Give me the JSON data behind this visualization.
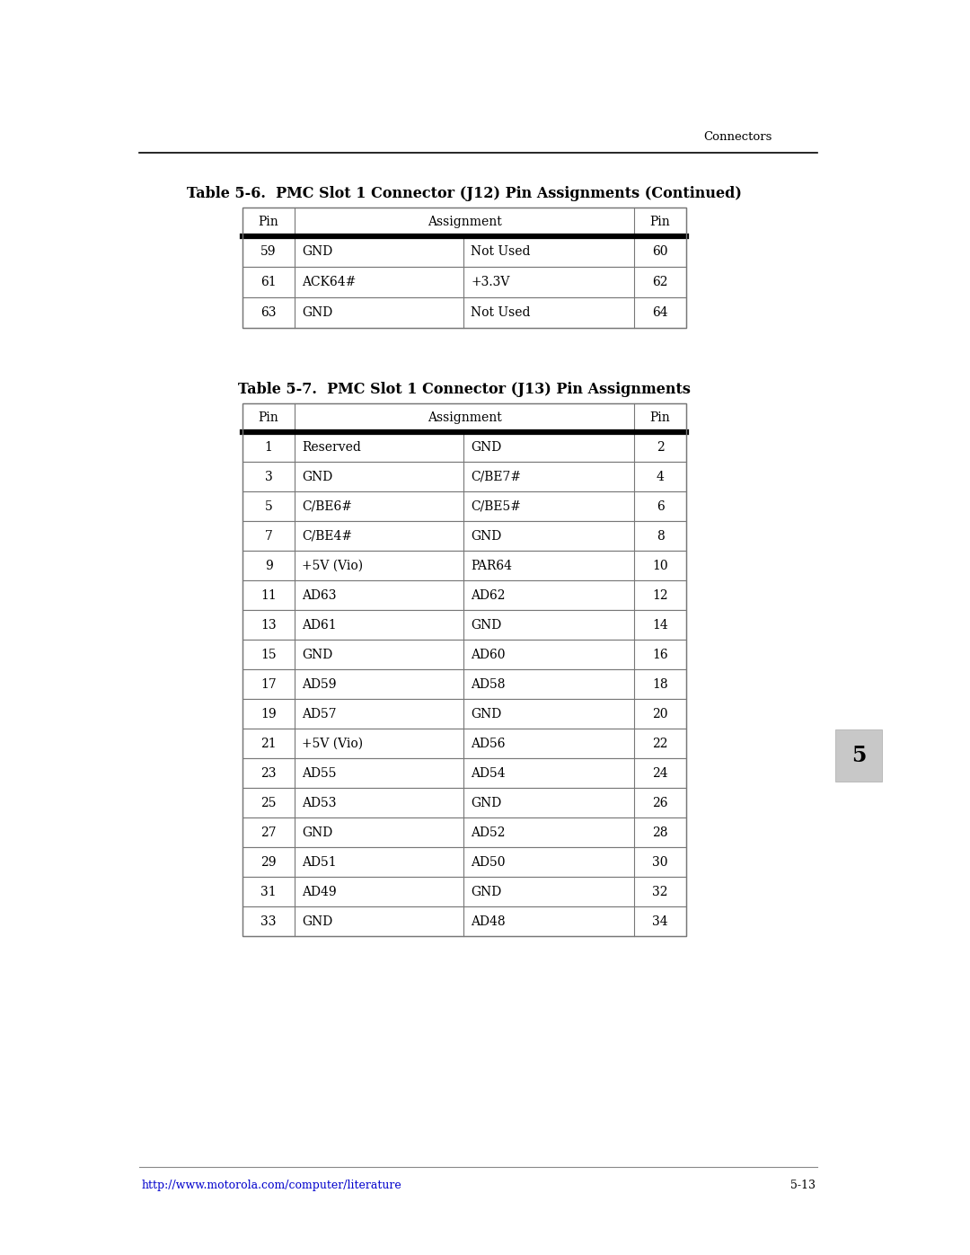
{
  "page_bg": "#ffffff",
  "header_text": "Connectors",
  "tab_number": "5",
  "table1_title": "Table 5-6.  PMC Slot 1 Connector (J12) Pin Assignments (Continued)",
  "table1_col_headers": [
    "Pin",
    "Assignment",
    "Pin"
  ],
  "table1_rows": [
    [
      "59",
      "GND",
      "Not Used",
      "60"
    ],
    [
      "61",
      "ACK64#",
      "+3.3V",
      "62"
    ],
    [
      "63",
      "GND",
      "Not Used",
      "64"
    ]
  ],
  "table2_title": "Table 5-7.  PMC Slot 1 Connector (J13) Pin Assignments",
  "table2_col_headers": [
    "Pin",
    "Assignment",
    "Pin"
  ],
  "table2_rows": [
    [
      "1",
      "Reserved",
      "GND",
      "2"
    ],
    [
      "3",
      "GND",
      "C/BE7#",
      "4"
    ],
    [
      "5",
      "C/BE6#",
      "C/BE5#",
      "6"
    ],
    [
      "7",
      "C/BE4#",
      "GND",
      "8"
    ],
    [
      "9",
      "+5V (Vio)",
      "PAR64",
      "10"
    ],
    [
      "11",
      "AD63",
      "AD62",
      "12"
    ],
    [
      "13",
      "AD61",
      "GND",
      "14"
    ],
    [
      "15",
      "GND",
      "AD60",
      "16"
    ],
    [
      "17",
      "AD59",
      "AD58",
      "18"
    ],
    [
      "19",
      "AD57",
      "GND",
      "20"
    ],
    [
      "21",
      "+5V (Vio)",
      "AD56",
      "22"
    ],
    [
      "23",
      "AD55",
      "AD54",
      "24"
    ],
    [
      "25",
      "AD53",
      "GND",
      "26"
    ],
    [
      "27",
      "GND",
      "AD52",
      "28"
    ],
    [
      "29",
      "AD51",
      "AD50",
      "30"
    ],
    [
      "31",
      "AD49",
      "GND",
      "32"
    ],
    [
      "33",
      "GND",
      "AD48",
      "34"
    ]
  ],
  "footer_url": "http://www.motorola.com/computer/literature",
  "footer_page": "5-13",
  "title_fontsize": 11.5,
  "header_fontsize": 10,
  "cell_fontsize": 10,
  "footer_fontsize": 9,
  "connectors_fontsize": 9.5,
  "table_border_color": "#777777",
  "thick_line_color": "#000000",
  "url_color": "#0000cc",
  "text_color": "#000000"
}
